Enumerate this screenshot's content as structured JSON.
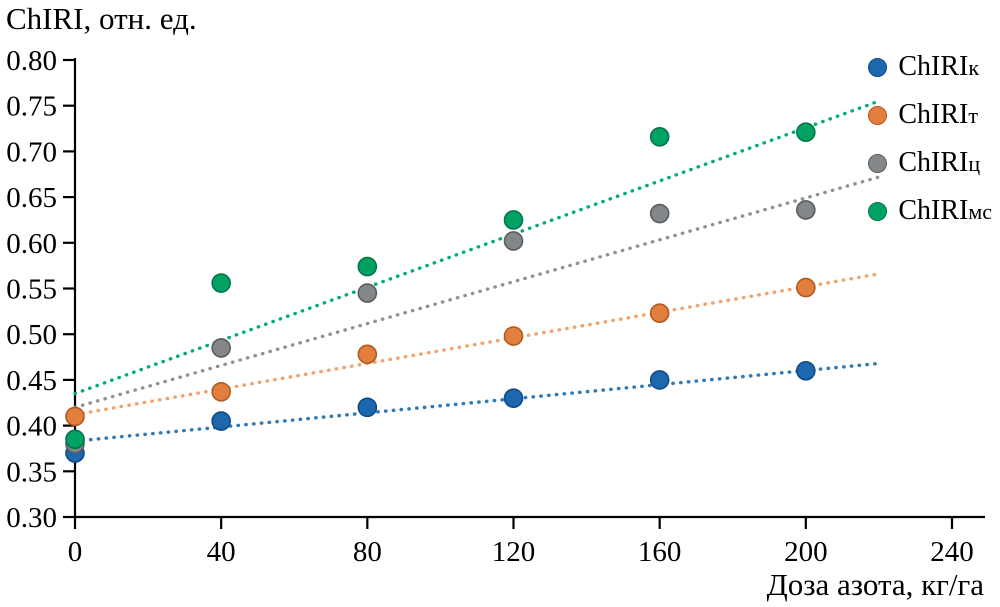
{
  "chart_data": {
    "type": "scatter",
    "title": "",
    "ylabel": "ChIRI, отн. ед.",
    "xlabel": "Доза азота, кг/га",
    "xlim": [
      0,
      240
    ],
    "ylim": [
      0.3,
      0.8
    ],
    "x_ticks": [
      0,
      40,
      80,
      120,
      160,
      200,
      240
    ],
    "y_ticks": [
      0.3,
      0.35,
      0.4,
      0.45,
      0.5,
      0.55,
      0.6,
      0.65,
      0.7,
      0.75,
      0.8
    ],
    "x": [
      0,
      40,
      80,
      120,
      160,
      200
    ],
    "grid": false,
    "legend_position": "top-right",
    "series": [
      {
        "name": "ChIRIк",
        "base": "ChIRI",
        "sub": "к",
        "color": "#1c67ad",
        "edge": "#0f4c86",
        "trend_color": "#2e79b8",
        "values": [
          0.37,
          0.405,
          0.42,
          0.43,
          0.45,
          0.46
        ],
        "trend": {
          "x": [
            0,
            220
          ],
          "y": [
            0.383,
            0.468
          ]
        }
      },
      {
        "name": "ChIRIт",
        "base": "ChIRI",
        "sub": "т",
        "color": "#e27f3e",
        "edge": "#b25a1f",
        "trend_color": "#f2a26b",
        "values": [
          0.41,
          0.437,
          0.478,
          0.498,
          0.523,
          0.551
        ],
        "trend": {
          "x": [
            0,
            220
          ],
          "y": [
            0.412,
            0.566
          ]
        }
      },
      {
        "name": "ChIRIц",
        "base": "ChIRI",
        "sub": "ц",
        "color": "#83878a",
        "edge": "#595d60",
        "trend_color": "#8f9396",
        "values": [
          0.38,
          0.485,
          0.545,
          0.602,
          0.632,
          0.636
        ],
        "trend": {
          "x": [
            0,
            220
          ],
          "y": [
            0.42,
            0.672
          ]
        }
      },
      {
        "name": "ChIRIмс",
        "base": "ChIRI",
        "sub": "мс",
        "color": "#00a263",
        "edge": "#00774a",
        "trend_color": "#00ad74",
        "values": [
          0.385,
          0.556,
          0.574,
          0.625,
          0.716,
          0.721
        ],
        "trend": {
          "x": [
            0,
            220
          ],
          "y": [
            0.435,
            0.755
          ]
        }
      }
    ]
  }
}
